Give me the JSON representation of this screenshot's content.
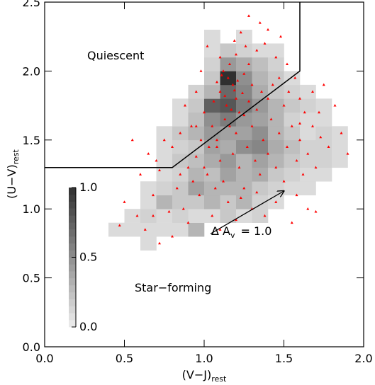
{
  "chart_data": {
    "type": "scatter",
    "xlabel": "(V−J)",
    "xlabel_sub": "rest",
    "ylabel": "(U−V)",
    "ylabel_sub": "rest",
    "xlim": [
      0,
      2
    ],
    "ylim": [
      0,
      2.5
    ],
    "xticks": [
      {
        "value": 0,
        "label": "0.0"
      },
      {
        "value": 0.5,
        "label": "0.5"
      },
      {
        "value": 1,
        "label": "1.0"
      },
      {
        "value": 1.5,
        "label": "1.5"
      },
      {
        "value": 2,
        "label": "2.0"
      }
    ],
    "yticks": [
      {
        "value": 0,
        "label": "0.0"
      },
      {
        "value": 0.5,
        "label": "0.5"
      },
      {
        "value": 1,
        "label": "1.0"
      },
      {
        "value": 1.5,
        "label": "1.5"
      },
      {
        "value": 2,
        "label": "2.0"
      },
      {
        "value": 2.5,
        "label": "2.5"
      }
    ],
    "heatmap": {
      "x_edges": [
        0.4,
        0.5,
        0.6,
        0.7,
        0.8,
        0.9,
        1.0,
        1.1,
        1.2,
        1.3,
        1.4,
        1.5,
        1.6,
        1.7,
        1.8,
        1.9
      ],
      "y_edges": [
        0.7,
        0.8,
        0.9,
        1.0,
        1.1,
        1.2,
        1.3,
        1.4,
        1.5,
        1.6,
        1.7,
        1.8,
        1.9,
        2.0,
        2.1,
        2.2,
        2.3
      ],
      "values": [
        [
          null,
          null,
          0.1,
          null,
          null,
          null,
          null,
          null,
          null,
          null,
          null,
          null,
          null,
          null,
          null
        ],
        [
          0.1,
          0.1,
          0.1,
          0.1,
          0.1,
          0.3,
          null,
          null,
          null,
          null,
          null,
          null,
          null,
          null,
          null
        ],
        [
          null,
          0.1,
          0.15,
          0.1,
          0.15,
          0.1,
          0.1,
          0.2,
          0.1,
          0.15,
          null,
          null,
          null,
          null,
          null
        ],
        [
          null,
          null,
          0.1,
          0.3,
          0.2,
          0.2,
          0.3,
          0.2,
          0.3,
          0.15,
          0.1,
          null,
          null,
          null,
          null
        ],
        [
          null,
          null,
          0.1,
          0.15,
          0.2,
          0.4,
          0.3,
          0.3,
          0.3,
          0.2,
          0.15,
          0.1,
          0.1,
          null,
          null
        ],
        [
          null,
          null,
          null,
          0.1,
          0.15,
          0.3,
          0.25,
          0.4,
          0.3,
          0.35,
          0.2,
          0.15,
          0.1,
          0.1,
          null
        ],
        [
          null,
          null,
          null,
          0.1,
          0.2,
          0.25,
          0.35,
          0.45,
          0.3,
          0.4,
          0.3,
          0.2,
          0.15,
          0.15,
          0.1
        ],
        [
          null,
          null,
          null,
          0.1,
          0.15,
          0.2,
          0.4,
          0.35,
          0.5,
          0.55,
          0.35,
          0.25,
          0.15,
          0.15,
          0.1
        ],
        [
          null,
          null,
          null,
          0.1,
          0.2,
          0.3,
          0.45,
          0.4,
          0.4,
          0.5,
          0.3,
          0.2,
          0.1,
          0.15,
          0.1
        ],
        [
          null,
          null,
          null,
          null,
          0.1,
          0.25,
          0.5,
          0.6,
          0.45,
          0.4,
          0.3,
          0.15,
          0.1,
          0.1,
          null
        ],
        [
          null,
          null,
          null,
          null,
          0.1,
          0.2,
          0.75,
          0.8,
          0.6,
          0.45,
          0.3,
          0.2,
          0.15,
          0.1,
          null
        ],
        [
          null,
          null,
          null,
          null,
          null,
          0.15,
          0.3,
          0.7,
          0.55,
          0.35,
          0.2,
          0.15,
          0.1,
          null,
          null
        ],
        [
          null,
          null,
          null,
          null,
          null,
          null,
          0.2,
          1.0,
          0.5,
          0.3,
          0.2,
          0.1,
          null,
          null,
          null
        ],
        [
          null,
          null,
          null,
          null,
          null,
          null,
          0.15,
          0.45,
          0.35,
          0.25,
          0.15,
          null,
          null,
          null,
          null
        ],
        [
          null,
          null,
          null,
          null,
          null,
          null,
          0.1,
          0.2,
          0.15,
          0.1,
          0.1,
          null,
          null,
          null,
          null
        ],
        [
          null,
          null,
          null,
          null,
          null,
          null,
          0.1,
          null,
          0.1,
          null,
          null,
          null,
          null,
          null,
          null
        ]
      ]
    },
    "colorbar": {
      "lim": [
        0,
        1
      ],
      "ticks": [
        {
          "value": 0,
          "label": "0.0"
        },
        {
          "value": 0.5,
          "label": "0.5"
        },
        {
          "value": 1,
          "label": "1.0"
        }
      ]
    },
    "series": [
      {
        "color": "#ff0000",
        "x": [
          1.12,
          1.15,
          1.18,
          1.1,
          1.2,
          1.14,
          1.22,
          1.08,
          1.16,
          1.25,
          1.19,
          1.13,
          1.06,
          1.21,
          1.17,
          1.24,
          1.1,
          1.2,
          1.28,
          1.3,
          1.33,
          1.38,
          1.4,
          1.45,
          1.48,
          1.52,
          1.35,
          1.28,
          1.23,
          1.02,
          0.98,
          0.95,
          1.0,
          0.92,
          0.88,
          0.85,
          0.8,
          0.75,
          0.7,
          0.65,
          0.6,
          0.55,
          0.5,
          0.58,
          0.63,
          0.68,
          0.72,
          0.78,
          0.83,
          0.87,
          0.9,
          0.93,
          0.97,
          1.0,
          1.03,
          1.05,
          1.08,
          1.1,
          1.12,
          1.15,
          1.18,
          1.2,
          1.22,
          1.25,
          1.27,
          1.3,
          1.32,
          1.35,
          1.37,
          1.4,
          1.42,
          1.45,
          1.47,
          1.5,
          1.52,
          1.55,
          1.58,
          1.6,
          1.63,
          1.65,
          1.68,
          1.7,
          1.73,
          1.78,
          1.82,
          1.86,
          1.9,
          1.62,
          1.58,
          1.65,
          1.7,
          1.55,
          1.45,
          1.38,
          1.3,
          1.2,
          1.1,
          1.05,
          1.13,
          1.16,
          1.25,
          1.28,
          1.33,
          1.36,
          1.4,
          1.43,
          1.47,
          1.53,
          1.57,
          1.6,
          1.68,
          1.75,
          1.08,
          0.98,
          0.95,
          0.9,
          0.85,
          0.95,
          1.02,
          1.07,
          1.23,
          1.33,
          1.5,
          1.6,
          1.72,
          0.68,
          0.8,
          0.47,
          0.72,
          1.19,
          1.26,
          1.11
        ],
        "y": [
          2.0,
          1.95,
          1.9,
          1.85,
          1.8,
          1.75,
          1.7,
          1.92,
          2.05,
          1.98,
          1.86,
          1.82,
          1.78,
          1.93,
          1.72,
          1.84,
          2.1,
          2.12,
          2.05,
          1.9,
          2.15,
          2.2,
          2.3,
          2.1,
          2.25,
          2.05,
          2.35,
          2.4,
          2.28,
          2.18,
          2.0,
          1.85,
          1.7,
          1.6,
          1.75,
          1.55,
          1.45,
          1.5,
          1.35,
          1.4,
          1.25,
          1.5,
          1.05,
          0.95,
          0.85,
          1.1,
          0.75,
          0.98,
          1.15,
          1.0,
          0.9,
          1.2,
          1.1,
          1.3,
          1.45,
          1.6,
          1.5,
          1.35,
          1.2,
          1.05,
          1.4,
          1.55,
          1.3,
          1.15,
          1.45,
          1.6,
          1.35,
          1.25,
          1.5,
          1.4,
          1.65,
          1.3,
          1.55,
          1.75,
          1.45,
          1.6,
          1.35,
          1.5,
          1.7,
          1.4,
          1.6,
          1.3,
          1.52,
          1.45,
          1.75,
          1.55,
          1.4,
          1.25,
          1.1,
          1.0,
          0.98,
          0.9,
          1.05,
          0.95,
          1.0,
          0.92,
          0.85,
          0.95,
          1.65,
          1.6,
          1.68,
          1.78,
          1.72,
          1.85,
          1.8,
          1.9,
          1.95,
          1.85,
          1.95,
          1.8,
          1.85,
          1.9,
          1.45,
          1.5,
          1.38,
          1.3,
          1.25,
          1.6,
          1.25,
          1.15,
          1.08,
          1.12,
          1.2,
          1.62,
          1.7,
          0.95,
          0.8,
          0.88,
          1.28,
          2.22,
          2.18,
          1.97
        ]
      }
    ],
    "selection_line": {
      "x": [
        0,
        0.8,
        1.6,
        1.6
      ],
      "y": [
        1.3,
        1.3,
        2.0,
        2.5
      ]
    },
    "arrow": {
      "x": [
        1.04,
        1.5
      ],
      "y": [
        0.82,
        1.13
      ]
    },
    "arrow_label": "Δ A",
    "arrow_label_sub": "v",
    "arrow_label_value": "= 1.0",
    "region_labels": [
      "Quiescent",
      "Star−forming"
    ]
  }
}
